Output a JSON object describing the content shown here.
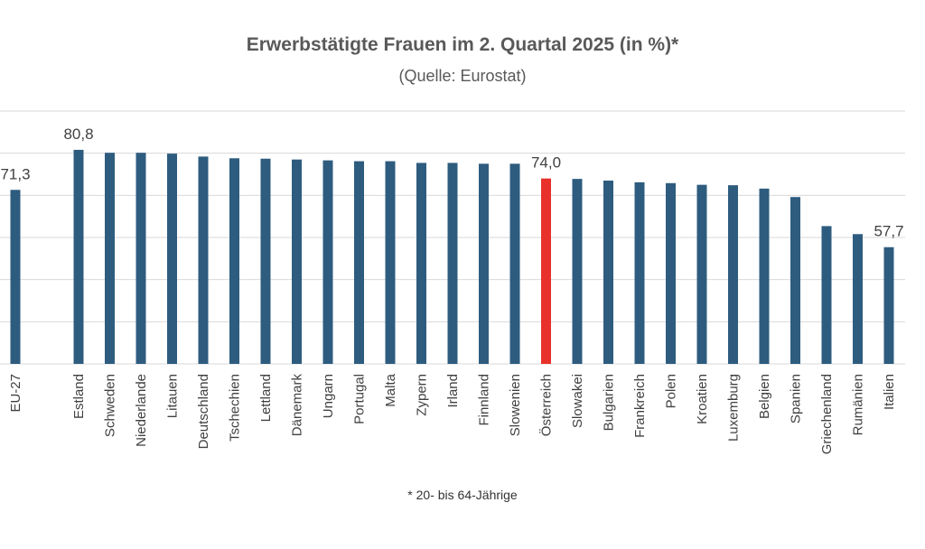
{
  "chart_data": {
    "type": "bar",
    "title": "Erwerbstätigte Frauen im 2. Quartal 2025 (in %)*",
    "subtitle": "(Quelle: Eurostat)",
    "footnote": "* 20- bis 64-Jährige",
    "categories": [
      "EU-27",
      "Estland",
      "Schweden",
      "Niederlande",
      "Litauen",
      "Deutschland",
      "Tschechien",
      "Lettland",
      "Dänemark",
      "Ungarn",
      "Portugal",
      "Malta",
      "Zypern",
      "Irland",
      "Finnland",
      "Slowenien",
      "Österreich",
      "Slowakei",
      "Bulgarien",
      "Frankreich",
      "Polen",
      "Kroatien",
      "Luxemburg",
      "Belgien",
      "Spanien",
      "Griechenland",
      "Rumänien",
      "Italien"
    ],
    "values": [
      71.3,
      80.8,
      80.1,
      80.1,
      79.9,
      79.2,
      78.8,
      78.7,
      78.5,
      78.3,
      78.1,
      78.1,
      77.7,
      77.7,
      77.5,
      77.5,
      74.0,
      73.9,
      73.5,
      73.1,
      72.9,
      72.5,
      72.4,
      71.6,
      69.6,
      62.7,
      60.8,
      57.7
    ],
    "data_labels": [
      {
        "category": "EU-27",
        "text": "71,3"
      },
      {
        "category": "Estland",
        "text": "80,8"
      },
      {
        "category": "Österreich",
        "text": "74,0"
      },
      {
        "category": "Italien",
        "text": "57,7"
      }
    ],
    "highlight": {
      "category": "Österreich",
      "color": "#e8312a"
    },
    "bar_color": "#2e5c7f",
    "grid_color": "#d9d9d9",
    "ylim": [
      30,
      90
    ],
    "grid": true,
    "xlabel": "",
    "ylabel": ""
  }
}
